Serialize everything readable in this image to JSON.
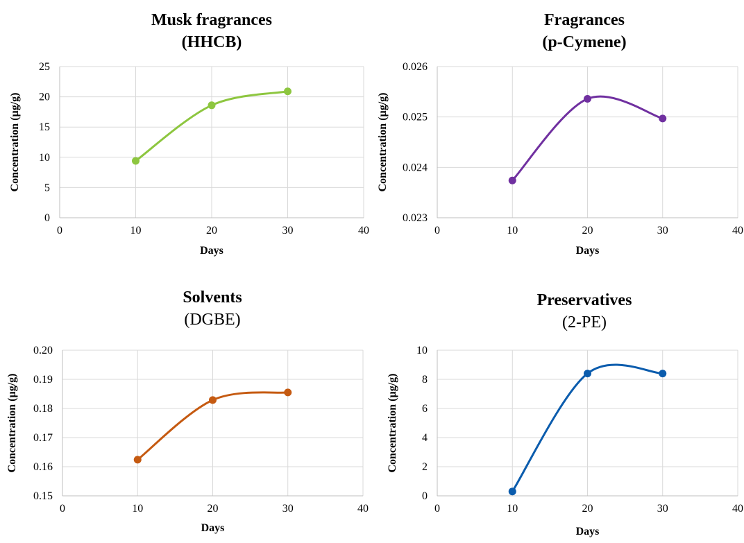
{
  "colors": {
    "grid": "#d9d9d9",
    "axis": "#bfbfbf",
    "green": "#8dc63f",
    "purple": "#7030a0",
    "orange": "#c55a11",
    "blue": "#0b5cad"
  },
  "chart_data": [
    {
      "type": "line",
      "title": "Musk fragrances",
      "subtitle": "(HHCB)",
      "subtitle_bold": true,
      "xlabel": "Days",
      "ylabel": "Concentration (µg/g)",
      "xlim": [
        0,
        40
      ],
      "ylim": [
        0,
        25
      ],
      "x_ticks": [
        0,
        10,
        20,
        30,
        40
      ],
      "x_tick_labels": [
        "0",
        "10",
        "20",
        "30",
        "40"
      ],
      "y_ticks": [
        0,
        5,
        10,
        15,
        20,
        25
      ],
      "y_tick_labels": [
        "0",
        "5",
        "10",
        "15",
        "20",
        "25"
      ],
      "grid": true,
      "series": [
        {
          "x": [
            10,
            20,
            30
          ],
          "values": [
            9.4,
            18.6,
            20.9
          ],
          "color": "#8dc63f",
          "smooth": true
        }
      ]
    },
    {
      "type": "line",
      "title": "Fragrances",
      "subtitle": "(p-Cymene)",
      "subtitle_bold": true,
      "xlabel": "Days",
      "ylabel": "Concentration (µg/g)",
      "xlim": [
        0,
        40
      ],
      "ylim": [
        0.023,
        0.026
      ],
      "x_ticks": [
        0,
        10,
        20,
        30,
        40
      ],
      "x_tick_labels": [
        "0",
        "10",
        "20",
        "30",
        "40"
      ],
      "y_ticks": [
        0.023,
        0.024,
        0.025,
        0.026
      ],
      "y_tick_labels": [
        "0.023",
        "0.024",
        "0.025",
        "0.026"
      ],
      "grid": true,
      "series": [
        {
          "x": [
            10,
            20,
            30
          ],
          "values": [
            0.02374,
            0.02536,
            0.02497
          ],
          "color": "#7030a0",
          "smooth": true
        }
      ]
    },
    {
      "type": "line",
      "title": "Solvents",
      "subtitle": "(DGBE)",
      "subtitle_bold": false,
      "xlabel": "Days",
      "ylabel": "Concentration (µg/g)",
      "xlim": [
        0,
        40
      ],
      "ylim": [
        0.15,
        0.2
      ],
      "x_ticks": [
        0,
        10,
        20,
        30,
        40
      ],
      "x_tick_labels": [
        "0",
        "10",
        "20",
        "30",
        "40"
      ],
      "y_ticks": [
        0.15,
        0.16,
        0.17,
        0.18,
        0.19,
        0.2
      ],
      "y_tick_labels": [
        "0.15",
        "0.16",
        "0.17",
        "0.18",
        "0.19",
        "0.20"
      ],
      "grid": true,
      "series": [
        {
          "x": [
            10,
            20,
            30
          ],
          "values": [
            0.1624,
            0.1829,
            0.1855
          ],
          "color": "#c55a11",
          "smooth": true
        }
      ]
    },
    {
      "type": "line",
      "title": "Preservatives",
      "subtitle": "(2-PE)",
      "subtitle_bold": false,
      "xlabel": "Days",
      "ylabel": "Concentration (µg/g)",
      "xlim": [
        0,
        40
      ],
      "ylim": [
        0,
        10
      ],
      "x_ticks": [
        0,
        10,
        20,
        30,
        40
      ],
      "x_tick_labels": [
        "0",
        "10",
        "20",
        "30",
        "40"
      ],
      "y_ticks": [
        0,
        2,
        4,
        6,
        8,
        10
      ],
      "y_tick_labels": [
        "0",
        "2",
        "4",
        "6",
        "8",
        "10"
      ],
      "grid": true,
      "series": [
        {
          "x": [
            10,
            20,
            30
          ],
          "values": [
            0.3,
            8.4,
            8.4
          ],
          "color": "#0b5cad",
          "smooth": true
        }
      ]
    }
  ]
}
